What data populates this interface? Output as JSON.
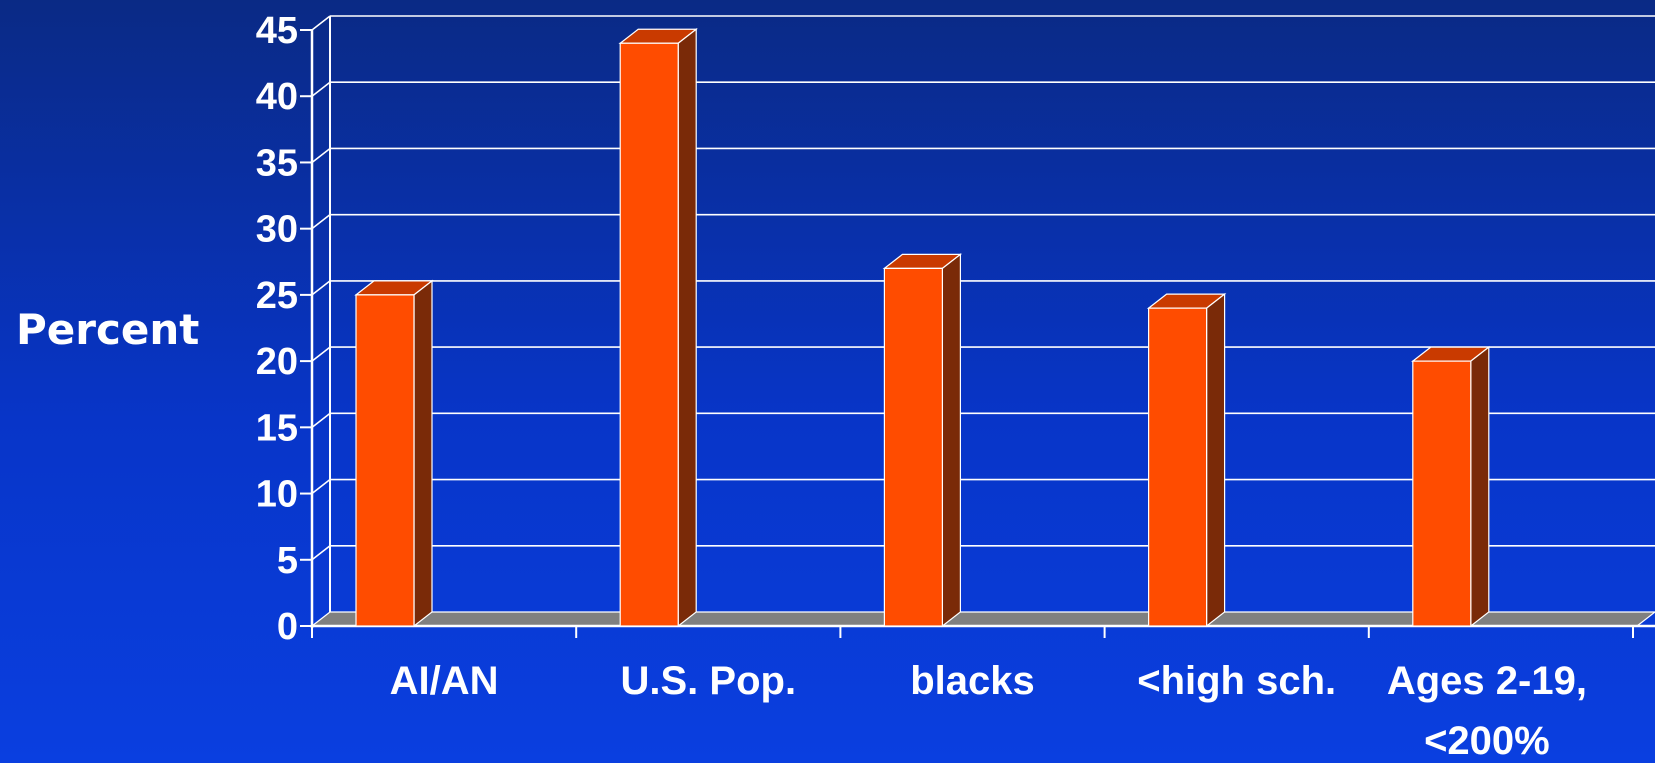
{
  "chart_data": {
    "type": "bar",
    "ylabel": "Percent",
    "xlabel": "",
    "categories": [
      "AI/AN",
      "U.S. Pop.",
      "blacks",
      "<high sch.",
      [
        "Ages 2-19,",
        "<200%"
      ]
    ],
    "values": [
      25,
      44,
      27,
      24,
      20
    ],
    "ylim": [
      0,
      45
    ],
    "yticks": [
      0,
      5,
      10,
      15,
      20,
      25,
      30,
      35,
      40,
      45
    ],
    "grid": true,
    "colors": {
      "bar_front": "#ff4c00",
      "bar_top": "#c93a00",
      "bar_side": "#7a2a08",
      "floor": "#808080",
      "grid": "#ffffff"
    }
  }
}
